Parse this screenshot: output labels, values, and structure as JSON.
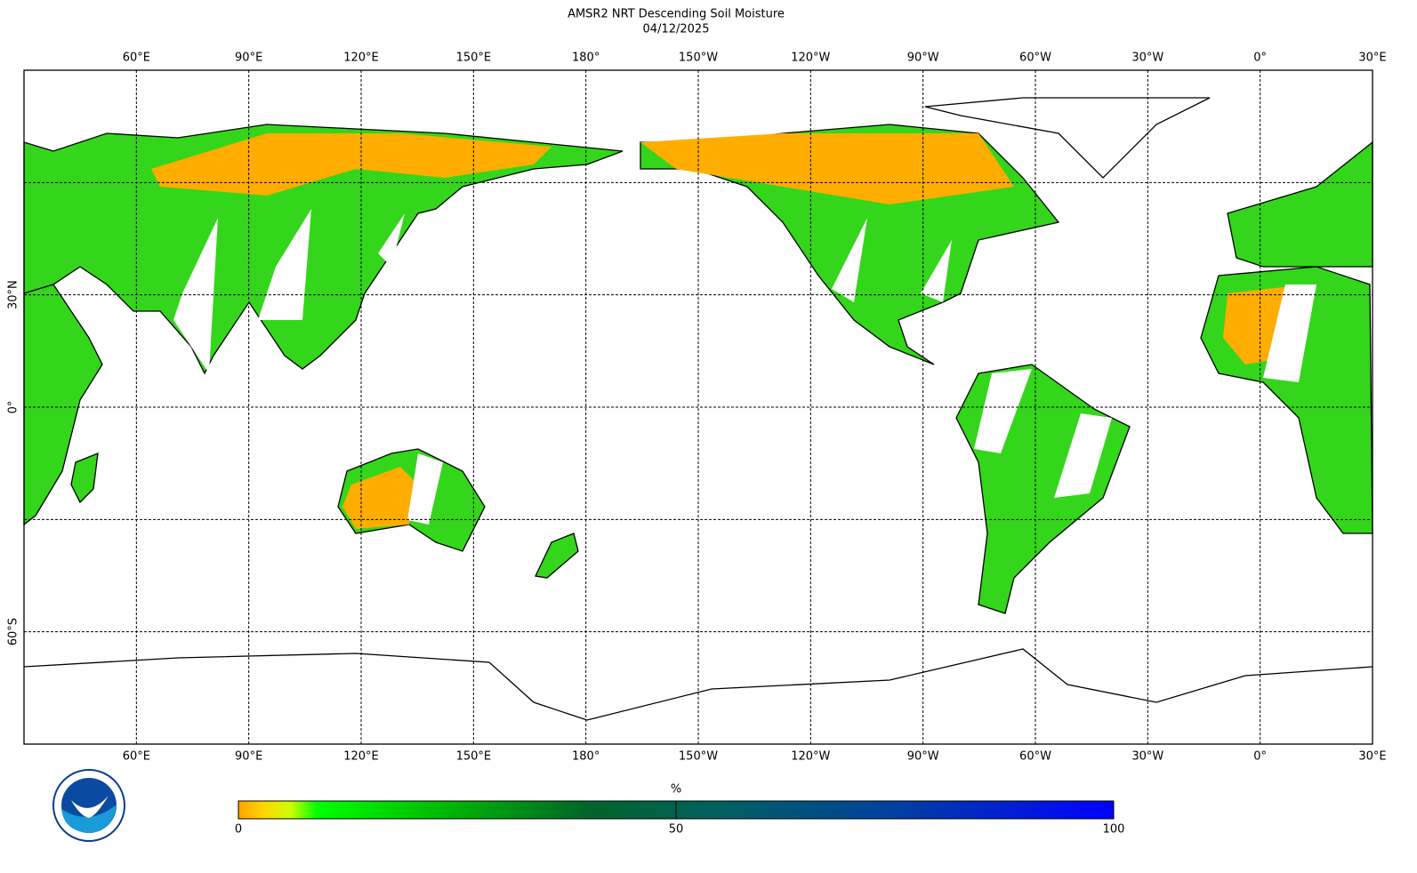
{
  "chart_data": {
    "type": "map",
    "title": "AMSR2 NRT Descending Soil Moisture",
    "subtitle": "04/12/2025",
    "xlim": [
      30,
      390
    ],
    "ylim": [
      -90,
      90
    ],
    "xticks": [
      {
        "value": 60,
        "label": "60°E"
      },
      {
        "value": 90,
        "label": "90°E"
      },
      {
        "value": 120,
        "label": "120°E"
      },
      {
        "value": 150,
        "label": "150°E"
      },
      {
        "value": 180,
        "label": "180°"
      },
      {
        "value": 210,
        "label": "150°W"
      },
      {
        "value": 240,
        "label": "120°W"
      },
      {
        "value": 270,
        "label": "90°W"
      },
      {
        "value": 300,
        "label": "60°W"
      },
      {
        "value": 330,
        "label": "30°W"
      },
      {
        "value": 360,
        "label": "0°"
      },
      {
        "value": 390,
        "label": "30°E"
      }
    ],
    "yticks": [
      {
        "value": 30,
        "label": "30°N"
      },
      {
        "value": 0,
        "label": "0°"
      },
      {
        "value": -60,
        "label": "60°S"
      }
    ],
    "parallels": [
      60,
      30,
      0,
      -30,
      -60
    ],
    "grid": true,
    "colorbar": {
      "label": "%",
      "lim": [
        0,
        100
      ],
      "ticks": [
        0,
        50,
        100
      ],
      "stops": [
        {
          "value": 0,
          "color": "#ffa500"
        },
        {
          "value": 3,
          "color": "#ffd700"
        },
        {
          "value": 6,
          "color": "#ccff00"
        },
        {
          "value": 9,
          "color": "#00ff00"
        },
        {
          "value": 22,
          "color": "#00c000"
        },
        {
          "value": 40,
          "color": "#006428"
        },
        {
          "value": 55,
          "color": "#006060"
        },
        {
          "value": 75,
          "color": "#0040a0"
        },
        {
          "value": 100,
          "color": "#0000ff"
        }
      ]
    }
  }
}
